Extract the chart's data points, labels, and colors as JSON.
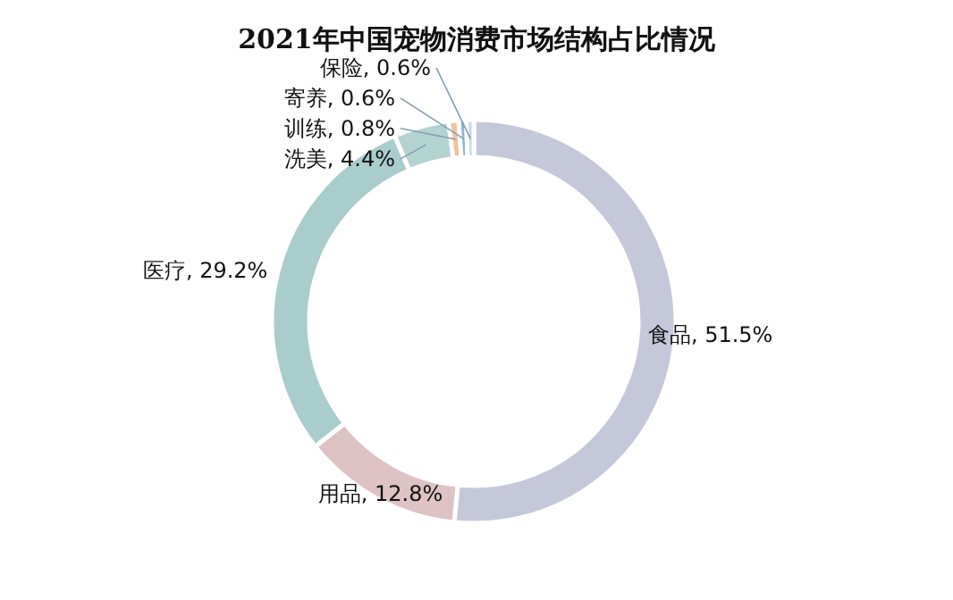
{
  "chart_data": {
    "type": "donut",
    "title": "2021年中国宠物消费市场结构占比情况",
    "categories": [
      "食品",
      "用品",
      "医疗",
      "洗美",
      "训练",
      "寄养",
      "保险"
    ],
    "values": [
      51.5,
      12.8,
      29.2,
      4.4,
      0.8,
      0.6,
      0.6
    ],
    "value_labels": [
      "51.5%",
      "12.8%",
      "29.2%",
      "4.4%",
      "0.8%",
      "0.6%",
      "0.6%"
    ],
    "colors": [
      "#c5c8da",
      "#dfc3c4",
      "#a9cdcd",
      "#b3d3d1",
      "#f2c29a",
      "#8fb4d6",
      "#c5d7ea"
    ]
  }
}
